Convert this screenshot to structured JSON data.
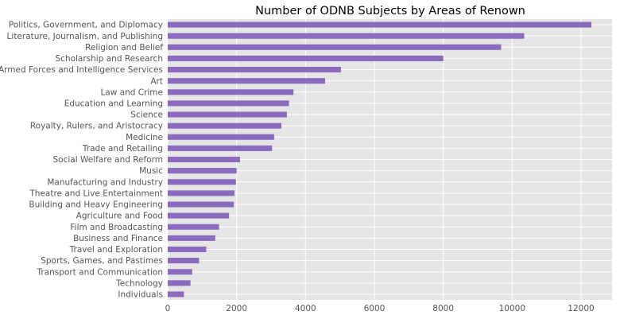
{
  "chart_data": {
    "type": "bar",
    "orientation": "horizontal",
    "title": "Number of ODNB Subjects by Areas of Renown",
    "xlabel": "",
    "ylabel": "",
    "xlim": [
      0,
      12900
    ],
    "xticks": [
      0,
      2000,
      4000,
      6000,
      8000,
      10000,
      12000
    ],
    "grid": true,
    "bar_color": "#8a6bbe",
    "background_color": "#e5e5e5",
    "categories": [
      "Politics, Government, and Diplomacy",
      "Literature, Journalism, and Publishing",
      "Religion and Belief",
      "Scholarship and Research",
      "Armed Forces and Intelligence Services",
      "Art",
      "Law and Crime",
      "Education and Learning",
      "Science",
      "Royalty, Rulers, and Aristocracy",
      "Medicine",
      "Trade and Retailing",
      "Social Welfare and Reform",
      "Music",
      "Manufacturing and Industry",
      "Theatre and Live Entertainment",
      "Building and Heavy Engineering",
      "Agriculture and Food",
      "Film and Broadcasting",
      "Business and Finance",
      "Travel and Exploration",
      "Sports, Games, and Pastimes",
      "Transport and Communication",
      "Technology",
      "Individuals"
    ],
    "values": [
      12300,
      10350,
      9680,
      8000,
      5030,
      4570,
      3650,
      3520,
      3460,
      3300,
      3090,
      3030,
      2100,
      2000,
      1980,
      1940,
      1920,
      1780,
      1490,
      1380,
      1120,
      910,
      710,
      660,
      470
    ]
  }
}
